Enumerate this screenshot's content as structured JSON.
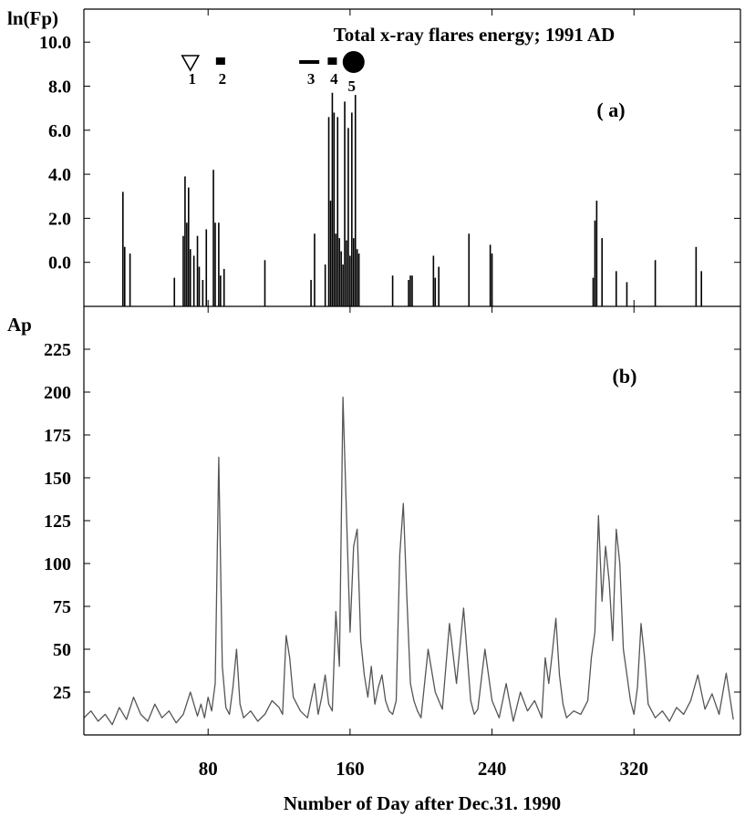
{
  "figure": {
    "xlabel": "Number of Day after Dec.31. 1990",
    "x_tick_labels": [
      "80",
      "160",
      "240",
      "320"
    ]
  },
  "chart_data": [
    {
      "type": "bar",
      "panel_label": "( a)",
      "title": "Total x-ray flares  energy; 1991 AD",
      "ylabel": "ln(Fp)",
      "ylim": [
        -2.0,
        11.5
      ],
      "xlim": [
        10,
        380
      ],
      "y_ticks": [
        0.0,
        2.0,
        4.0,
        6.0,
        8.0,
        10.0
      ],
      "y_tick_labels": [
        "0.0",
        "2.0",
        "4.0",
        "6.0",
        "8.0",
        "10.0"
      ],
      "colors": {
        "bars": "#000000"
      },
      "markers": [
        {
          "label": "1",
          "shape": "open-triangle-down",
          "x": 70
        },
        {
          "label": "2",
          "shape": "square",
          "x": 87
        },
        {
          "label": "3",
          "shape": "dash",
          "x": 137
        },
        {
          "label": "4",
          "shape": "square",
          "x": 150
        },
        {
          "label": "5",
          "shape": "filled-circle",
          "x": 162
        }
      ],
      "x": [
        32,
        33,
        36,
        61,
        66,
        67,
        68,
        69,
        70,
        72,
        74,
        75,
        77,
        79,
        83,
        84,
        86,
        87,
        89,
        112,
        138,
        140,
        146,
        148,
        149,
        150,
        151,
        152,
        153,
        154,
        155,
        156,
        157,
        158,
        159,
        160,
        161,
        162,
        163,
        164,
        165,
        184,
        193,
        194,
        195,
        207,
        208,
        210,
        227,
        239,
        240,
        297,
        298,
        299,
        302,
        310,
        316,
        332,
        355,
        358
      ],
      "values": [
        3.2,
        0.7,
        0.4,
        -0.7,
        1.2,
        3.9,
        1.8,
        3.4,
        0.6,
        0.3,
        1.2,
        -0.2,
        -0.8,
        1.5,
        4.2,
        1.8,
        1.8,
        -0.6,
        -0.3,
        0.1,
        -0.8,
        1.3,
        -0.1,
        6.6,
        2.8,
        7.7,
        6.8,
        1.3,
        6.6,
        1.1,
        0.5,
        -0.1,
        7.3,
        1.0,
        6.1,
        0.3,
        6.8,
        1.1,
        7.6,
        0.6,
        0.4,
        -0.6,
        -0.8,
        -0.6,
        -0.6,
        0.3,
        -0.7,
        -0.2,
        1.3,
        0.8,
        0.4,
        -0.7,
        1.9,
        2.8,
        1.1,
        -0.4,
        -0.9,
        0.1,
        0.7,
        -0.4
      ]
    },
    {
      "type": "line",
      "panel_label": "(b)",
      "ylabel": "Ap",
      "ylim": [
        0,
        250
      ],
      "xlim": [
        10,
        380
      ],
      "y_ticks": [
        25,
        50,
        75,
        100,
        125,
        150,
        175,
        200,
        225
      ],
      "y_tick_labels": [
        "25",
        "50",
        "75",
        "100",
        "125",
        "150",
        "175",
        "200",
        "225"
      ],
      "colors": {
        "line": "#555555"
      },
      "x": [
        10,
        14,
        18,
        22,
        26,
        30,
        34,
        38,
        42,
        46,
        50,
        54,
        58,
        62,
        66,
        70,
        74,
        76,
        78,
        80,
        82,
        84,
        86,
        88,
        90,
        92,
        94,
        96,
        98,
        100,
        104,
        108,
        112,
        116,
        120,
        122,
        124,
        126,
        128,
        132,
        136,
        140,
        142,
        144,
        146,
        148,
        150,
        152,
        154,
        156,
        158,
        160,
        162,
        164,
        166,
        168,
        170,
        172,
        174,
        176,
        178,
        180,
        182,
        184,
        186,
        188,
        190,
        192,
        194,
        196,
        198,
        200,
        204,
        208,
        212,
        216,
        220,
        224,
        228,
        230,
        232,
        236,
        240,
        244,
        248,
        252,
        256,
        260,
        264,
        268,
        270,
        272,
        274,
        276,
        278,
        280,
        282,
        286,
        290,
        294,
        296,
        298,
        300,
        302,
        304,
        306,
        308,
        310,
        312,
        314,
        316,
        318,
        320,
        322,
        324,
        326,
        328,
        332,
        336,
        340,
        344,
        348,
        352,
        356,
        360,
        364,
        368,
        372,
        376
      ],
      "values": [
        10,
        14,
        8,
        12,
        6,
        16,
        9,
        22,
        12,
        8,
        18,
        10,
        14,
        7,
        12,
        25,
        11,
        18,
        10,
        22,
        14,
        30,
        162,
        40,
        16,
        12,
        28,
        50,
        18,
        10,
        14,
        8,
        12,
        20,
        16,
        12,
        58,
        45,
        22,
        14,
        10,
        30,
        12,
        22,
        35,
        18,
        14,
        72,
        40,
        197,
        128,
        60,
        110,
        120,
        55,
        35,
        22,
        40,
        18,
        28,
        35,
        20,
        14,
        12,
        20,
        105,
        135,
        80,
        30,
        20,
        14,
        10,
        50,
        25,
        15,
        65,
        30,
        74,
        20,
        12,
        15,
        50,
        20,
        10,
        30,
        8,
        25,
        14,
        20,
        10,
        45,
        30,
        48,
        68,
        35,
        18,
        10,
        14,
        12,
        20,
        45,
        60,
        128,
        78,
        110,
        90,
        55,
        120,
        100,
        50,
        35,
        20,
        12,
        28,
        65,
        45,
        18,
        10,
        14,
        8,
        16,
        12,
        20,
        35,
        15,
        24,
        12,
        36,
        9
      ]
    }
  ]
}
